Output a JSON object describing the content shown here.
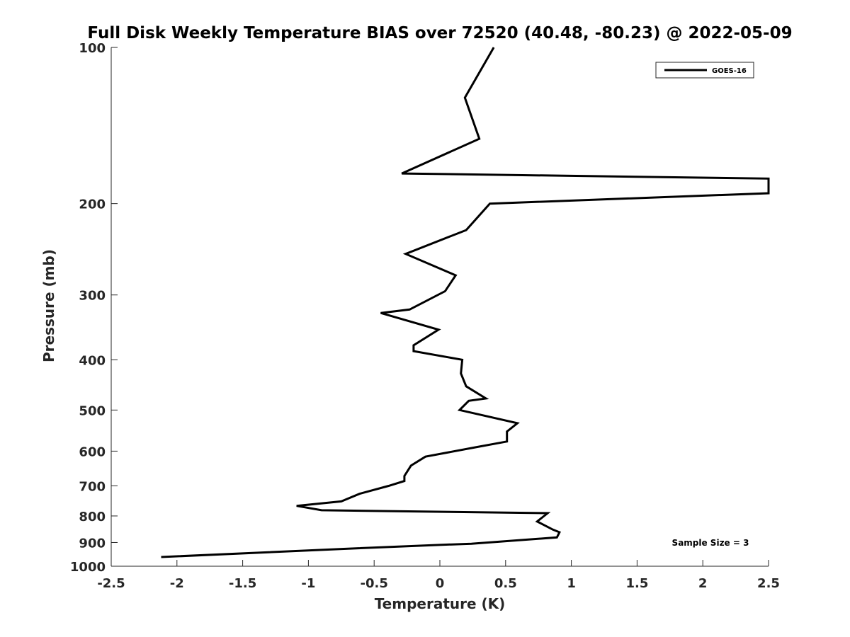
{
  "chart_data": {
    "type": "line",
    "title": "Full Disk Weekly Temperature BIAS over 72520 (40.48, -80.23) @ 2022-05-09",
    "xlabel": "Temperature (K)",
    "ylabel": "Pressure (mb)",
    "xlim": [
      -2.5,
      2.5
    ],
    "ylim": [
      1000,
      100
    ],
    "y_scale": "log",
    "x_ticks": [
      -2.5,
      -2,
      -1.5,
      -1,
      -0.5,
      0,
      0.5,
      1,
      1.5,
      2,
      2.5
    ],
    "x_tick_labels": [
      "-2.5",
      "-2",
      "-1.5",
      "-1",
      "-0.5",
      "0",
      "0.5",
      "1",
      "1.5",
      "2",
      "2.5"
    ],
    "y_ticks": [
      100,
      200,
      300,
      400,
      500,
      600,
      700,
      800,
      900,
      1000
    ],
    "y_tick_labels": [
      "100",
      "200",
      "300",
      "400",
      "500",
      "600",
      "700",
      "800",
      "900",
      "1000"
    ],
    "grid": false,
    "legend_position": "top-right",
    "series": [
      {
        "name": "GOES-16",
        "color": "#000000",
        "points": [
          [
            0.41,
            100
          ],
          [
            0.19,
            125
          ],
          [
            0.3,
            150
          ],
          [
            -0.29,
            175
          ],
          [
            2.5,
            179
          ],
          [
            2.5,
            191
          ],
          [
            0.38,
            200
          ],
          [
            0.2,
            225
          ],
          [
            -0.26,
            250
          ],
          [
            0.12,
            275
          ],
          [
            0.04,
            295
          ],
          [
            -0.23,
            320
          ],
          [
            -0.45,
            325
          ],
          [
            -0.01,
            350
          ],
          [
            -0.2,
            375
          ],
          [
            -0.2,
            385
          ],
          [
            0.17,
            400
          ],
          [
            0.16,
            425
          ],
          [
            0.2,
            450
          ],
          [
            0.35,
            475
          ],
          [
            0.22,
            480
          ],
          [
            0.15,
            500
          ],
          [
            0.59,
            530
          ],
          [
            0.51,
            550
          ],
          [
            0.51,
            575
          ],
          [
            0.27,
            590
          ],
          [
            -0.11,
            615
          ],
          [
            -0.22,
            640
          ],
          [
            -0.27,
            670
          ],
          [
            -0.27,
            685
          ],
          [
            -0.39,
            700
          ],
          [
            -0.61,
            725
          ],
          [
            -0.75,
            750
          ],
          [
            -1.09,
            765
          ],
          [
            -0.9,
            780
          ],
          [
            0.82,
            790
          ],
          [
            0.74,
            820
          ],
          [
            0.86,
            850
          ],
          [
            0.91,
            860
          ],
          [
            0.89,
            880
          ],
          [
            0.24,
            905
          ],
          [
            -0.02,
            910
          ],
          [
            -0.7,
            925
          ],
          [
            -2.12,
            960
          ]
        ]
      }
    ],
    "annotations": [
      {
        "text": "Sample Size = 3",
        "position": "bottom-right"
      }
    ]
  }
}
